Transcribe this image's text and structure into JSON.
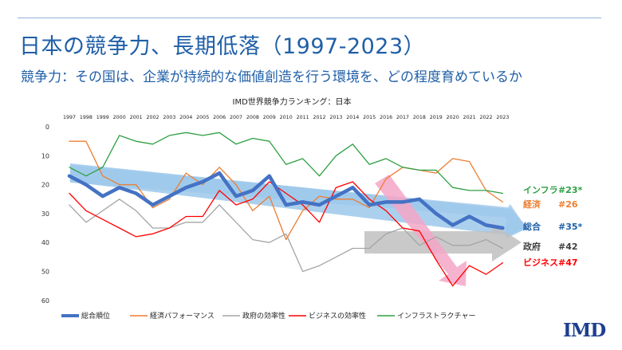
{
  "slide": {
    "title": "日本の競争力、長期低落（1997-2023）",
    "subtitle": "競争力：その国は、企業が持続的な価値創造を行う環境を、どの程度育めているか",
    "logo": "IMD"
  },
  "chart_data": {
    "type": "line",
    "title": "IMD世界競争力ランキング：日本",
    "x": [
      1997,
      1998,
      1999,
      2000,
      2001,
      2002,
      2003,
      2004,
      2005,
      2006,
      2007,
      2008,
      2009,
      2010,
      2011,
      2012,
      2013,
      2014,
      2015,
      2016,
      2017,
      2018,
      2019,
      2020,
      2021,
      2022,
      2023
    ],
    "ylim": [
      0,
      60
    ],
    "y_inverted": true,
    "y_ticks": [
      0,
      10,
      20,
      30,
      40,
      50,
      60
    ],
    "grid": false,
    "legend_position": "bottom",
    "series": [
      {
        "name": "総合順位",
        "color": "#4472c4",
        "values": [
          17,
          20,
          24,
          21,
          23,
          27,
          24,
          21,
          19,
          16,
          24,
          22,
          17,
          27,
          26,
          27,
          24,
          21,
          27,
          26,
          26,
          25,
          30,
          34,
          31,
          34,
          35
        ],
        "end_label": "総合",
        "end_rank": "#35*"
      },
      {
        "name": "経済パフォーマンス",
        "color": "#ed7d31",
        "values": [
          5,
          5,
          17,
          20,
          20,
          28,
          25,
          16,
          20,
          14,
          20,
          29,
          24,
          39,
          29,
          24,
          25,
          25,
          28,
          18,
          14,
          15,
          16,
          11,
          12,
          22,
          26
        ],
        "end_label": "経済",
        "end_rank": "#26"
      },
      {
        "name": "政府の効率性",
        "color": "#a5a5a5",
        "values": [
          27,
          33,
          29,
          25,
          29,
          35,
          35,
          33,
          33,
          27,
          33,
          39,
          40,
          37,
          50,
          48,
          45,
          42,
          42,
          37,
          35,
          41,
          38,
          41,
          41,
          39,
          42
        ],
        "end_label": "政府",
        "end_rank": "#42"
      },
      {
        "name": "ビジネスの効率性",
        "color": "#ff0000",
        "values": [
          23,
          29,
          32,
          35,
          38,
          37,
          35,
          31,
          31,
          22,
          27,
          25,
          19,
          23,
          27,
          33,
          21,
          19,
          25,
          29,
          35,
          36,
          46,
          55,
          48,
          51,
          47
        ],
        "end_label": "ビジネス",
        "end_rank": "#47"
      },
      {
        "name": "インフラストラクチャー",
        "color": "#2ea043",
        "values": [
          14,
          17,
          14,
          3,
          5,
          6,
          3,
          2,
          3,
          2,
          6,
          4,
          5,
          13,
          11,
          17,
          10,
          6,
          13,
          11,
          14,
          15,
          15,
          21,
          22,
          22,
          23
        ],
        "end_label": "インフラ",
        "end_rank": "#23*"
      }
    ]
  }
}
